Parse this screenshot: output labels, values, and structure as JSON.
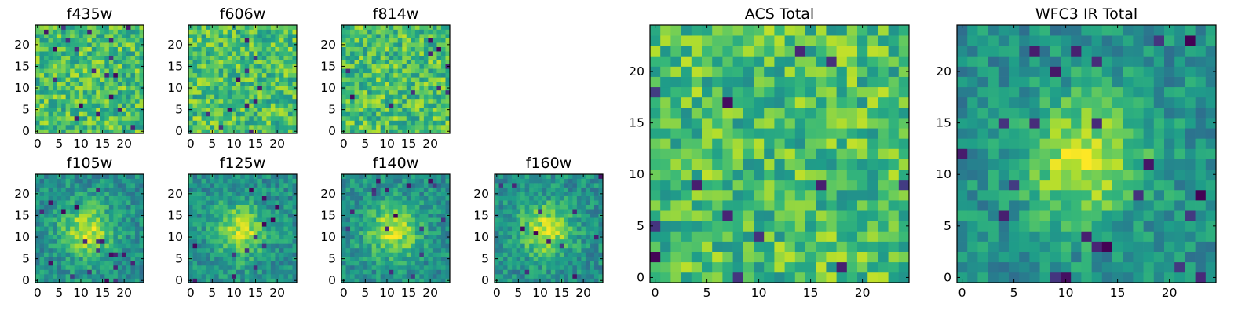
{
  "chart_data": [
    {
      "id": "f435w",
      "type": "heatmap",
      "title": "f435w",
      "grid_size": 25,
      "pattern": "noise",
      "xticks": [
        "0",
        "5",
        "10",
        "15",
        "20"
      ],
      "yticks": [
        "0",
        "5",
        "10",
        "15",
        "20"
      ]
    },
    {
      "id": "f606w",
      "type": "heatmap",
      "title": "f606w",
      "grid_size": 25,
      "pattern": "noise",
      "xticks": [
        "0",
        "5",
        "10",
        "15",
        "20"
      ],
      "yticks": [
        "0",
        "5",
        "10",
        "15",
        "20"
      ]
    },
    {
      "id": "f814w",
      "type": "heatmap",
      "title": "f814w",
      "grid_size": 25,
      "pattern": "noise",
      "xticks": [
        "0",
        "5",
        "10",
        "15",
        "20"
      ],
      "yticks": [
        "0",
        "5",
        "10",
        "15",
        "20"
      ]
    },
    {
      "id": "f105w",
      "type": "heatmap",
      "title": "f105w",
      "grid_size": 25,
      "pattern": "central source",
      "xticks": [
        "0",
        "5",
        "10",
        "15",
        "20"
      ],
      "yticks": [
        "0",
        "5",
        "10",
        "15",
        "20"
      ]
    },
    {
      "id": "f125w",
      "type": "heatmap",
      "title": "f125w",
      "grid_size": 25,
      "pattern": "central source",
      "xticks": [
        "0",
        "5",
        "10",
        "15",
        "20"
      ],
      "yticks": [
        "0",
        "5",
        "10",
        "15",
        "20"
      ]
    },
    {
      "id": "f140w",
      "type": "heatmap",
      "title": "f140w",
      "grid_size": 25,
      "pattern": "central source",
      "xticks": [
        "0",
        "5",
        "10",
        "15",
        "20"
      ],
      "yticks": [
        "0",
        "5",
        "10",
        "15",
        "20"
      ]
    },
    {
      "id": "f160w",
      "type": "heatmap",
      "title": "f160w",
      "grid_size": 25,
      "pattern": "central source",
      "xticks": [
        "0",
        "5",
        "10",
        "15",
        "20"
      ],
      "yticks": [
        "0",
        "5",
        "10",
        "15",
        "20"
      ]
    },
    {
      "id": "acs",
      "type": "heatmap",
      "title": "ACS Total",
      "grid_size": 25,
      "pattern": "noise",
      "xticks": [
        "0",
        "5",
        "10",
        "15",
        "20"
      ],
      "yticks": [
        "0",
        "5",
        "10",
        "15",
        "20"
      ]
    },
    {
      "id": "wfc3",
      "type": "heatmap",
      "title": "WFC3 IR Total",
      "grid_size": 25,
      "pattern": "central source",
      "xticks": [
        "0",
        "5",
        "10",
        "15",
        "20"
      ],
      "yticks": [
        "0",
        "5",
        "10",
        "15",
        "20"
      ]
    }
  ],
  "colormap": "viridis",
  "colors": {
    "low": "#440154",
    "mid": "#21908d",
    "high": "#fde725"
  }
}
